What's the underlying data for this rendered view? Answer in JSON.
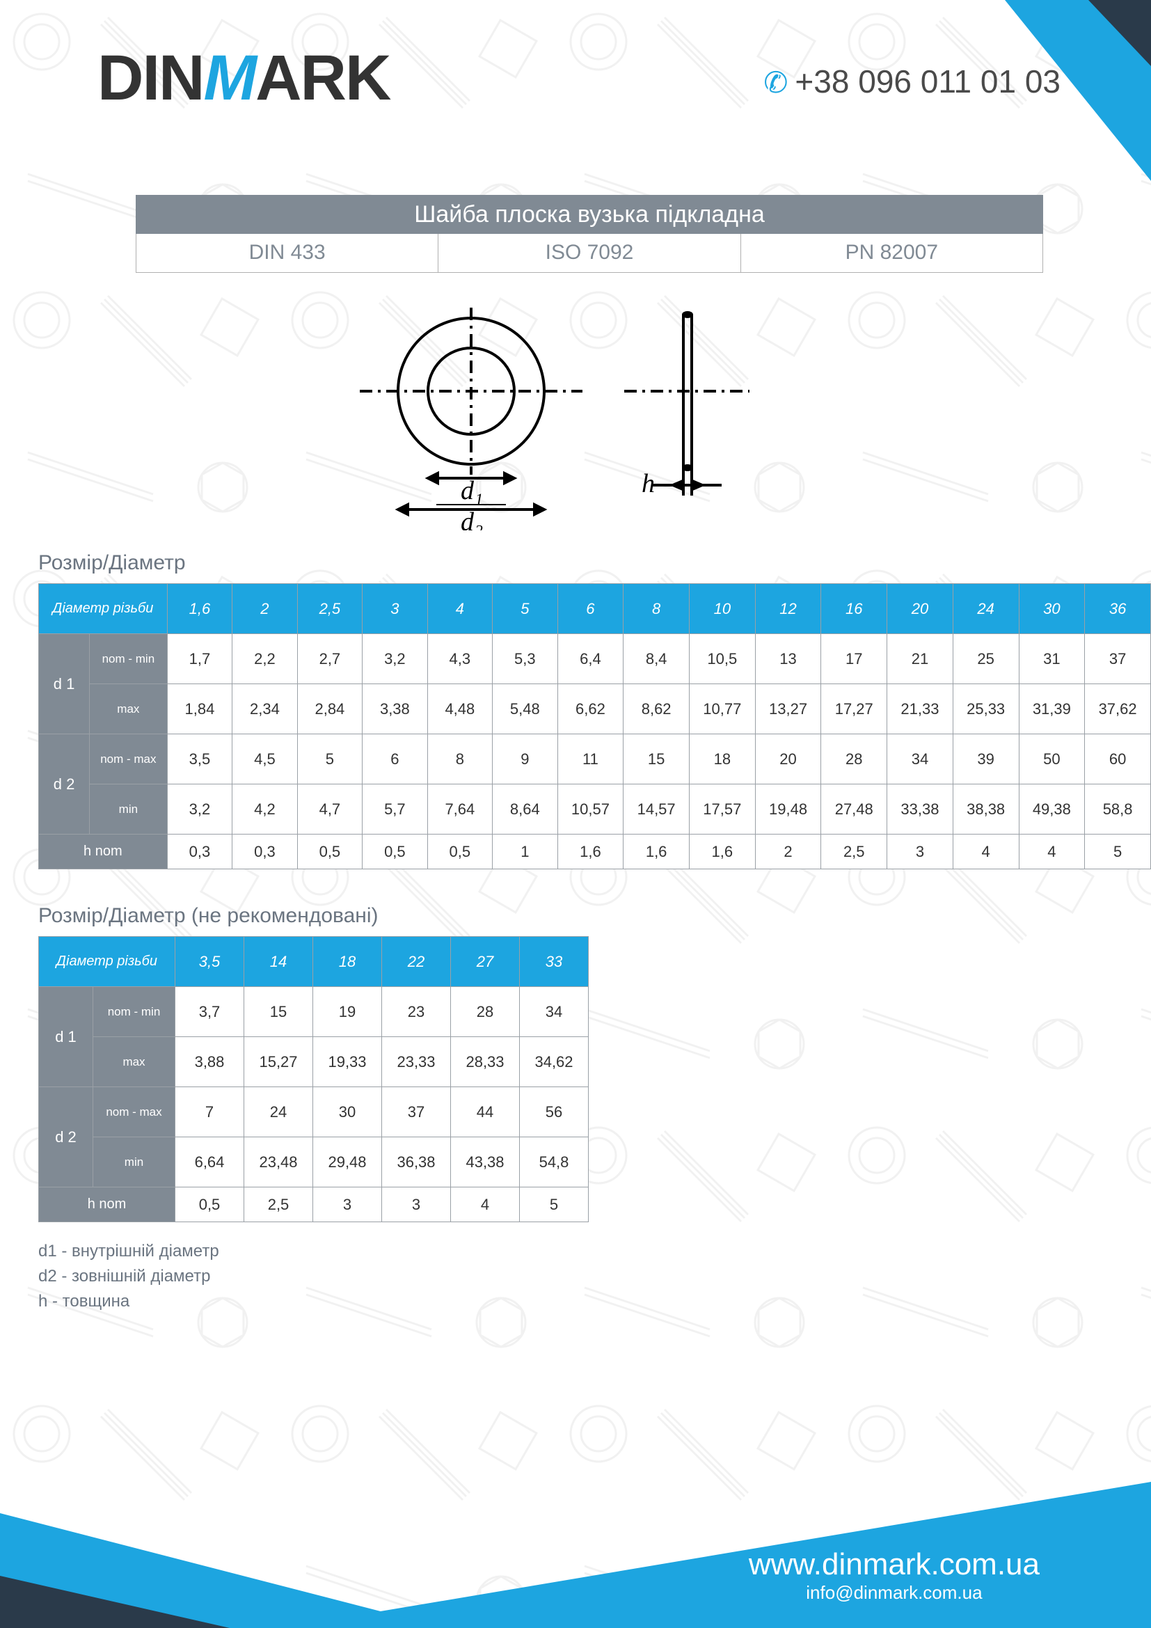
{
  "brand": {
    "pre": "DIN",
    "mid": "M",
    "post": "ARK"
  },
  "phone": "+38 096 011 01 03",
  "title": "Шайба плоска вузька підкладна",
  "standards": [
    "DIN 433",
    "ISO 7092",
    "PN 82007"
  ],
  "diagram": {
    "d1_label": "d₁",
    "d2_label": "d₂",
    "h_label": "h"
  },
  "section1_title": "Розмір/Діаметр",
  "header_label": "Діаметр різьби",
  "colors": {
    "accent": "#1da5e0",
    "gray": "#808a94",
    "dark": "#2a3a4a",
    "border": "#9aa0a6"
  },
  "row_labels": {
    "d1": "d 1",
    "d1_nom": "nom - min",
    "d1_max": "max",
    "d2": "d 2",
    "d2_nom": "nom - max",
    "d2_min": "min",
    "hnom": "h nom"
  },
  "table1": {
    "head": [
      "1,6",
      "2",
      "2,5",
      "3",
      "4",
      "5",
      "6",
      "8",
      "10",
      "12",
      "16",
      "20",
      "24",
      "30",
      "36"
    ],
    "d1_nom": [
      "1,7",
      "2,2",
      "2,7",
      "3,2",
      "4,3",
      "5,3",
      "6,4",
      "8,4",
      "10,5",
      "13",
      "17",
      "21",
      "25",
      "31",
      "37"
    ],
    "d1_max": [
      "1,84",
      "2,34",
      "2,84",
      "3,38",
      "4,48",
      "5,48",
      "6,62",
      "8,62",
      "10,77",
      "13,27",
      "17,27",
      "21,33",
      "25,33",
      "31,39",
      "37,62"
    ],
    "d2_nom": [
      "3,5",
      "4,5",
      "5",
      "6",
      "8",
      "9",
      "11",
      "15",
      "18",
      "20",
      "28",
      "34",
      "39",
      "50",
      "60"
    ],
    "d2_min": [
      "3,2",
      "4,2",
      "4,7",
      "5,7",
      "7,64",
      "8,64",
      "10,57",
      "14,57",
      "17,57",
      "19,48",
      "27,48",
      "33,38",
      "38,38",
      "49,38",
      "58,8"
    ],
    "hnom": [
      "0,3",
      "0,3",
      "0,5",
      "0,5",
      "0,5",
      "1",
      "1,6",
      "1,6",
      "1,6",
      "2",
      "2,5",
      "3",
      "4",
      "4",
      "5"
    ]
  },
  "section2_title": "Розмір/Діаметр (не рекомендовані)",
  "table2": {
    "head": [
      "3,5",
      "14",
      "18",
      "22",
      "27",
      "33"
    ],
    "d1_nom": [
      "3,7",
      "15",
      "19",
      "23",
      "28",
      "34"
    ],
    "d1_max": [
      "3,88",
      "15,27",
      "19,33",
      "23,33",
      "28,33",
      "34,62"
    ],
    "d2_nom": [
      "7",
      "24",
      "30",
      "37",
      "44",
      "56"
    ],
    "d2_min": [
      "6,64",
      "23,48",
      "29,48",
      "36,38",
      "43,38",
      "54,8"
    ],
    "hnom": [
      "0,5",
      "2,5",
      "3",
      "3",
      "4",
      "5"
    ]
  },
  "legend": {
    "l1": "d1 - внутрішній діаметр",
    "l2": "d2 - зовнішній діаметр",
    "l3": "h - товщина"
  },
  "footer": {
    "url": "www.dinmark.com.ua",
    "mail": "info@dinmark.com.ua"
  }
}
